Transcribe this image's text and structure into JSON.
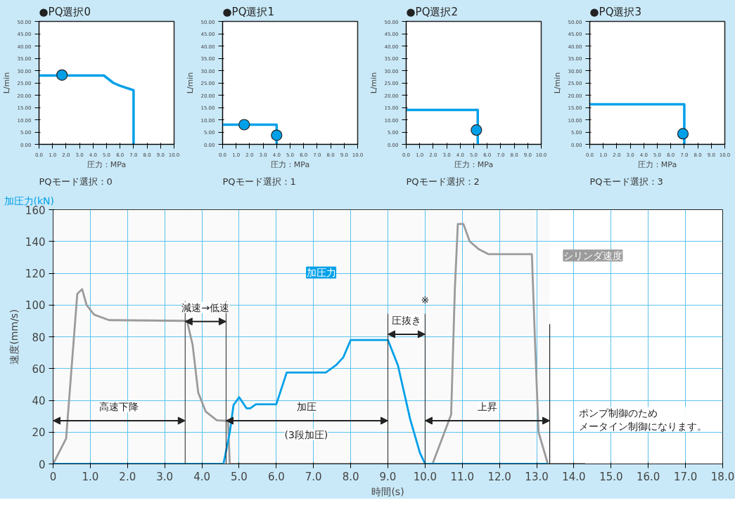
{
  "chart_data": [
    {
      "type": "line",
      "title": "●PQ選択0",
      "xlabel": "圧力：MPa",
      "ylabel": "L/min",
      "annotations": [
        "PQモード選択：0"
      ],
      "series": [
        {
          "color": "#00a0e9",
          "x": [
            0,
            4.8,
            5.5,
            6.0,
            7.0,
            7.0
          ],
          "values": [
            28,
            28,
            25,
            23.8,
            22,
            0
          ]
        },
        {
          "type": "scatter",
          "color": "#00a0e9",
          "x": [
            1.7
          ],
          "values": [
            28.2
          ]
        }
      ],
      "xlim": [
        0,
        10
      ],
      "ylim": [
        0,
        50
      ],
      "xticks": [
        {
          "value": 0,
          "label": "0.0"
        },
        {
          "value": 1,
          "label": "1.0"
        },
        {
          "value": 2,
          "label": "2.0"
        },
        {
          "value": 3,
          "label": "3.0"
        },
        {
          "value": 4,
          "label": "4.0"
        },
        {
          "value": 5,
          "label": "5.0"
        },
        {
          "value": 6,
          "label": "6.0"
        },
        {
          "value": 7,
          "label": "7.0"
        },
        {
          "value": 8,
          "label": "8.0"
        },
        {
          "value": 9,
          "label": "9.0"
        },
        {
          "value": 10,
          "label": "10.0"
        }
      ],
      "yticks": [
        {
          "value": 0,
          "label": "0.00"
        },
        {
          "value": 5,
          "label": "5.00"
        },
        {
          "value": 10,
          "label": "10.00"
        },
        {
          "value": 15,
          "label": "15.00"
        },
        {
          "value": 20,
          "label": "20.00"
        },
        {
          "value": 25,
          "label": "25.00"
        },
        {
          "value": 30,
          "label": "30.00"
        },
        {
          "value": 35,
          "label": "35.00"
        },
        {
          "value": 40,
          "label": "40.00"
        },
        {
          "value": 45,
          "label": "45.00"
        },
        {
          "value": 50,
          "label": "50.00"
        }
      ]
    },
    {
      "type": "line",
      "title": "●PQ選択1",
      "xlabel": "圧力：MPa",
      "ylabel": "L/min",
      "annotations": [
        "PQモード選択：1"
      ],
      "series": [
        {
          "color": "#00a0e9",
          "x": [
            0,
            4.0,
            4.0
          ],
          "values": [
            8,
            8,
            0
          ]
        },
        {
          "type": "scatter",
          "color": "#00a0e9",
          "x": [
            1.6,
            4.0
          ],
          "values": [
            8,
            3.7
          ]
        }
      ],
      "xlim": [
        0,
        10
      ],
      "ylim": [
        0,
        50
      ],
      "xticks": [
        {
          "value": 0,
          "label": "0.0"
        },
        {
          "value": 1,
          "label": "1.0"
        },
        {
          "value": 2,
          "label": "2.0"
        },
        {
          "value": 3,
          "label": "3.0"
        },
        {
          "value": 4,
          "label": "4.0"
        },
        {
          "value": 5,
          "label": "5.0"
        },
        {
          "value": 6,
          "label": "6.0"
        },
        {
          "value": 7,
          "label": "7.0"
        },
        {
          "value": 8,
          "label": "8.0"
        },
        {
          "value": 9,
          "label": "9.0"
        },
        {
          "value": 10,
          "label": "10.0"
        }
      ],
      "yticks": [
        {
          "value": 0,
          "label": "0.00"
        },
        {
          "value": 5,
          "label": "5.00"
        },
        {
          "value": 10,
          "label": "10.00"
        },
        {
          "value": 15,
          "label": "15.00"
        },
        {
          "value": 20,
          "label": "20.00"
        },
        {
          "value": 25,
          "label": "25.00"
        },
        {
          "value": 30,
          "label": "30.00"
        },
        {
          "value": 35,
          "label": "35.00"
        },
        {
          "value": 40,
          "label": "40.00"
        },
        {
          "value": 45,
          "label": "45.00"
        },
        {
          "value": 50,
          "label": "50.00"
        }
      ]
    },
    {
      "type": "line",
      "title": "●PQ選択2",
      "xlabel": "圧力：MPa",
      "ylabel": "L/min",
      "annotations": [
        "PQモード選択：2"
      ],
      "series": [
        {
          "color": "#00a0e9",
          "x": [
            0,
            5.3,
            5.3
          ],
          "values": [
            14,
            14,
            0
          ]
        },
        {
          "type": "scatter",
          "color": "#00a0e9",
          "x": [
            5.2
          ],
          "values": [
            5.8
          ]
        }
      ],
      "xlim": [
        0,
        10
      ],
      "ylim": [
        0,
        50
      ],
      "xticks": [
        {
          "value": 0,
          "label": "0.0"
        },
        {
          "value": 1,
          "label": "1.0"
        },
        {
          "value": 2,
          "label": "2.0"
        },
        {
          "value": 3,
          "label": "3.0"
        },
        {
          "value": 4,
          "label": "4.0"
        },
        {
          "value": 5,
          "label": "5.0"
        },
        {
          "value": 6,
          "label": "6.0"
        },
        {
          "value": 7,
          "label": "7.0"
        },
        {
          "value": 8,
          "label": "8.0"
        },
        {
          "value": 9,
          "label": "9.0"
        },
        {
          "value": 10,
          "label": "10.0"
        }
      ],
      "yticks": [
        {
          "value": 0,
          "label": "0.00"
        },
        {
          "value": 5,
          "label": "5.00"
        },
        {
          "value": 10,
          "label": "10.00"
        },
        {
          "value": 15,
          "label": "15.00"
        },
        {
          "value": 20,
          "label": "20.00"
        },
        {
          "value": 25,
          "label": "25.00"
        },
        {
          "value": 30,
          "label": "30.00"
        },
        {
          "value": 35,
          "label": "35.00"
        },
        {
          "value": 40,
          "label": "40.00"
        },
        {
          "value": 45,
          "label": "45.00"
        },
        {
          "value": 50,
          "label": "50.00"
        }
      ]
    },
    {
      "type": "line",
      "title": "●PQ選択3",
      "xlabel": "圧力：MPa",
      "ylabel": "L/min",
      "annotations": [
        "PQモード選択：3"
      ],
      "series": [
        {
          "color": "#00a0e9",
          "x": [
            0,
            7.0,
            7.0
          ],
          "values": [
            16.3,
            16.3,
            0
          ]
        },
        {
          "type": "scatter",
          "color": "#00a0e9",
          "x": [
            6.9
          ],
          "values": [
            4.3
          ]
        }
      ],
      "xlim": [
        0,
        10
      ],
      "ylim": [
        0,
        50
      ],
      "xticks": [
        {
          "value": 0,
          "label": "0.0"
        },
        {
          "value": 1,
          "label": "1.0"
        },
        {
          "value": 2,
          "label": "2.0"
        },
        {
          "value": 3,
          "label": "3.0"
        },
        {
          "value": 4,
          "label": "4.0"
        },
        {
          "value": 5,
          "label": "5.0"
        },
        {
          "value": 6,
          "label": "6.0"
        },
        {
          "value": 7,
          "label": "7.0"
        },
        {
          "value": 8,
          "label": "8.0"
        },
        {
          "value": 9,
          "label": "9.0"
        },
        {
          "value": 10,
          "label": "10.0"
        }
      ],
      "yticks": [
        {
          "value": 0,
          "label": "0.00"
        },
        {
          "value": 5,
          "label": "5.00"
        },
        {
          "value": 10,
          "label": "10.00"
        },
        {
          "value": 15,
          "label": "15.00"
        },
        {
          "value": 20,
          "label": "20.00"
        },
        {
          "value": 25,
          "label": "25.00"
        },
        {
          "value": 30,
          "label": "30.00"
        },
        {
          "value": 35,
          "label": "35.00"
        },
        {
          "value": 40,
          "label": "40.00"
        },
        {
          "value": 45,
          "label": "45.00"
        },
        {
          "value": 50,
          "label": "50.00"
        }
      ]
    },
    {
      "type": "line",
      "ylabel": "速度(mm/s)",
      "xlabel": "時間(s)",
      "grid": true,
      "line_style": "solid",
      "annotations": [
        "(3段加圧)",
        {
          "text": "※",
          "x": 10.0,
          "y": 103
        },
        "ポンプ制御のためメータイン制御になります。",
        "加圧力(kN)"
      ],
      "ref_lines": [
        {
          "axis": "x",
          "value": 13.35
        }
      ],
      "bands": [
        {
          "axis": "x",
          "from": 0,
          "to": 3.55,
          "label": "高速下降"
        },
        {
          "axis": "x",
          "from": 3.55,
          "to": 4.65,
          "label": "減速→低速"
        },
        {
          "axis": "x",
          "from": 4.65,
          "to": 9.0,
          "label": "加圧"
        },
        {
          "axis": "x",
          "from": 9.0,
          "to": 10.0,
          "label": "圧抜き"
        },
        {
          "axis": "x",
          "from": 10.0,
          "to": 13.35,
          "label": "上昇"
        }
      ],
      "series": [
        {
          "name": "シリンダ速度",
          "color": "#9b9b9b",
          "x": [
            0,
            0.35,
            0.65,
            0.78,
            0.9,
            1.1,
            1.5,
            3.6,
            3.75,
            3.9,
            4.1,
            4.4,
            4.7,
            4.75,
            10.2,
            10.7,
            10.8,
            10.88,
            11.03,
            11.2,
            11.45,
            11.7,
            12.87,
            12.95,
            13.05,
            13.3,
            14.3
          ],
          "values": [
            0,
            16,
            107,
            110,
            100,
            94,
            90.5,
            90,
            75,
            45,
            33,
            27.5,
            27,
            0,
            0,
            31,
            110,
            151,
            151,
            140,
            135,
            132,
            132,
            80,
            20,
            0,
            0
          ]
        },
        {
          "name": "加圧力",
          "color": "#00a0e9",
          "x": [
            0,
            4.58,
            4.75,
            4.85,
            5.0,
            5.2,
            5.3,
            5.45,
            6.0,
            6.28,
            7.33,
            7.6,
            7.8,
            8.0,
            9.0,
            9.27,
            9.6,
            9.86,
            10.0,
            13.3
          ],
          "values": [
            0,
            0,
            20,
            37,
            42,
            35,
            35,
            37.5,
            37.5,
            57.5,
            57.5,
            62,
            67,
            78,
            78,
            62,
            28,
            7,
            0,
            0
          ]
        }
      ],
      "xlim": [
        0,
        18
      ],
      "ylim": [
        0,
        160
      ],
      "xticks": [
        0,
        {
          "value": 1,
          "label": "1.0"
        },
        {
          "value": 2,
          "label": "2.0"
        },
        {
          "value": 3,
          "label": "3.0"
        },
        {
          "value": 4,
          "label": "4.0"
        },
        {
          "value": 5,
          "label": "5.0"
        },
        {
          "value": 6,
          "label": "6.0"
        },
        {
          "value": 7,
          "label": "7.0"
        },
        {
          "value": 8,
          "label": "8.0"
        },
        {
          "value": 9,
          "label": "9.0"
        },
        {
          "value": 10,
          "label": "10.0"
        },
        {
          "value": 11,
          "label": "11.0"
        },
        {
          "value": 12,
          "label": "12.0"
        },
        {
          "value": 13,
          "label": "13.0"
        },
        {
          "value": 14,
          "label": "14.0"
        },
        {
          "value": 15,
          "label": "15.0"
        },
        {
          "value": 16,
          "label": "16.0"
        },
        {
          "value": 17,
          "label": "17.0"
        },
        {
          "value": 18,
          "label": "18.0"
        }
      ],
      "yticks": [
        0,
        20,
        40,
        60,
        80,
        100,
        120,
        140,
        160
      ]
    }
  ]
}
